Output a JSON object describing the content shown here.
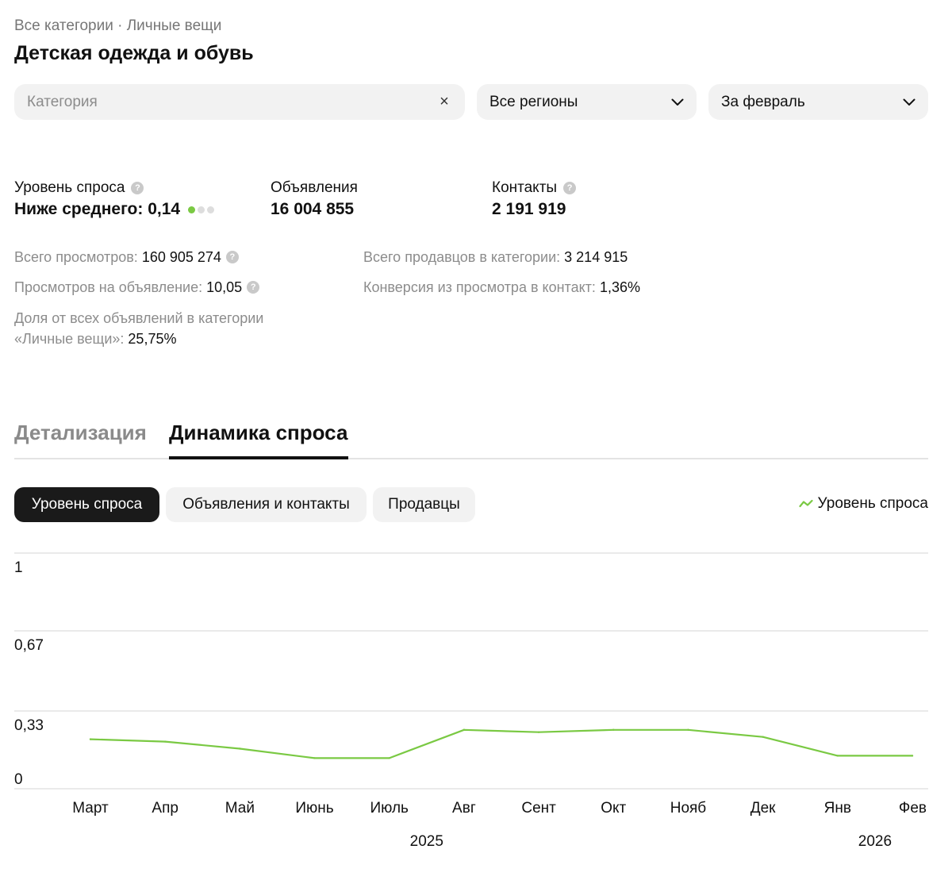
{
  "header": {
    "breadcrumb": "Все категории · Личные вещи",
    "title": "Детская одежда и обувь"
  },
  "filters": {
    "category_placeholder": "Категория",
    "region": "Все регионы",
    "period": "За февраль"
  },
  "metrics": {
    "demand_label": "Уровень спроса",
    "demand_value": "Ниже среднего: 0,14",
    "ads_label": "Объявления",
    "ads_value": "16 004 855",
    "contacts_label": "Контакты",
    "contacts_value": "2 191 919"
  },
  "stats": {
    "total_views_label": "Всего просмотров:",
    "total_views_value": "160 905 274",
    "views_per_ad_label": "Просмотров на объявление:",
    "views_per_ad_value": "10,05",
    "share_label_line1": "Доля от всех объявлений в категории",
    "share_label_line2": "«Личные вещи»:",
    "share_value": "25,75%",
    "sellers_label": "Всего продавцов в категории:",
    "sellers_value": "3 214 915",
    "conversion_label": "Конверсия из просмотра в контакт:",
    "conversion_value": "1,36%"
  },
  "tabs": {
    "detail": "Детализация",
    "dynamics": "Динамика спроса"
  },
  "chips": {
    "demand": "Уровень спроса",
    "ads_contacts": "Объявления и контакты",
    "sellers": "Продавцы"
  },
  "colors": {
    "accent_green": "#7ac943",
    "chip_active": "#1a1a1a",
    "chip_bg": "#f2f2f2"
  },
  "icons": {
    "clear": "close-icon",
    "dropdown": "chevron-down-icon",
    "help": "question-circle-icon",
    "legend": "trend-line-icon"
  },
  "chart_data": {
    "type": "line",
    "legend": "Уровень спроса",
    "y_ticks": [
      {
        "value": 1,
        "label": "1"
      },
      {
        "value": 0.67,
        "label": "0,67"
      },
      {
        "value": 0.33,
        "label": "0,33"
      },
      {
        "value": 0,
        "label": "0"
      }
    ],
    "ylim": [
      0,
      1
    ],
    "categories": [
      "Март",
      "Апр",
      "Май",
      "Июнь",
      "Июль",
      "Авг",
      "Сент",
      "Окт",
      "Нояб",
      "Дек",
      "Янв",
      "Фев"
    ],
    "year_labels": [
      {
        "label": "2025",
        "after_index": 4.5
      },
      {
        "label": "2026",
        "after_index": 10.5
      }
    ],
    "series": [
      {
        "name": "Уровень спроса",
        "values": [
          0.21,
          0.2,
          0.17,
          0.13,
          0.13,
          0.25,
          0.24,
          0.25,
          0.25,
          0.22,
          0.14,
          0.14
        ]
      }
    ],
    "grid": true
  }
}
